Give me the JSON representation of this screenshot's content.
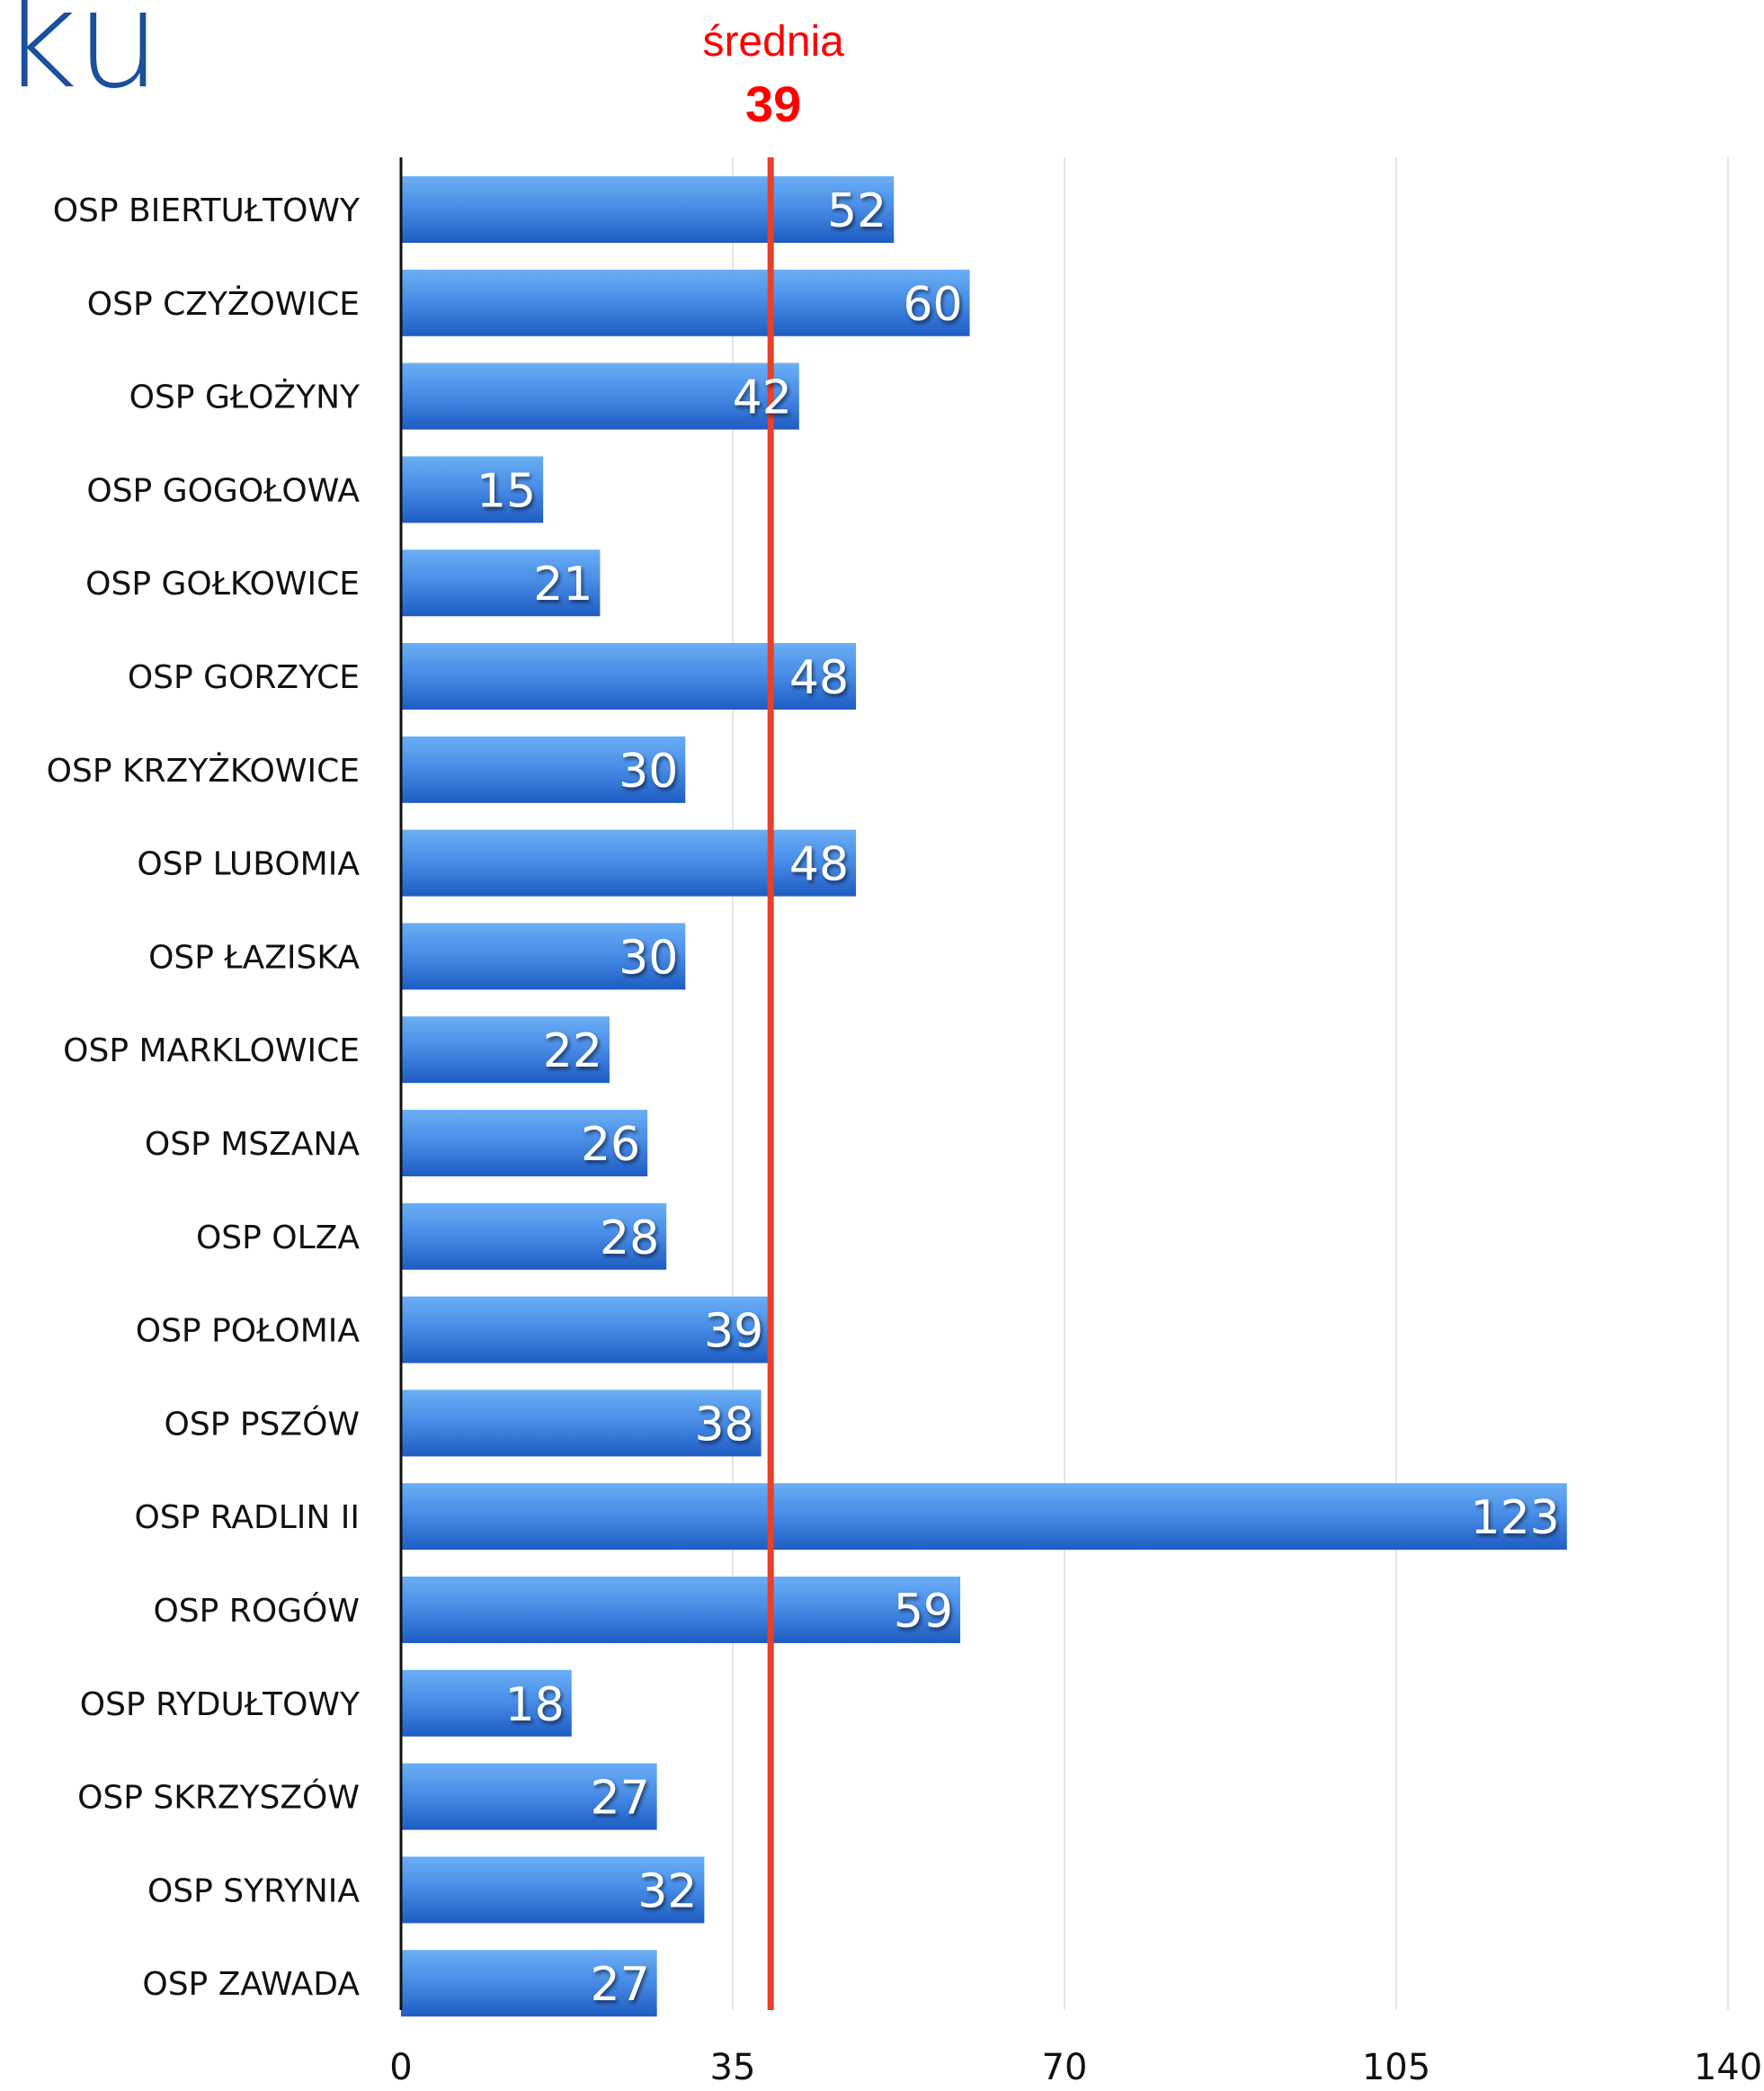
{
  "header": {
    "title_fragment": "ku"
  },
  "chart_data": {
    "type": "bar",
    "orientation": "horizontal",
    "categories": [
      "OSP BIERTUŁTOWY",
      "OSP CZYŻOWICE",
      "OSP GŁOŻYNY",
      "OSP GOGOŁOWA",
      "OSP GOŁKOWICE",
      "OSP GORZYCE",
      "OSP KRZYŻKOWICE",
      "OSP LUBOMIA",
      "OSP ŁAZISKA",
      "OSP MARKLOWICE",
      "OSP MSZANA",
      "OSP OLZA",
      "OSP POŁOMIA",
      "OSP PSZÓW",
      "OSP RADLIN II",
      "OSP ROGÓW",
      "OSP RYDUŁTOWY",
      "OSP SKRZYSZÓW",
      "OSP SYRYNIA",
      "OSP ZAWADA"
    ],
    "values": [
      52,
      60,
      42,
      15,
      21,
      48,
      30,
      48,
      30,
      22,
      26,
      28,
      39,
      38,
      123,
      59,
      18,
      27,
      32,
      27
    ],
    "xlim": [
      0,
      140
    ],
    "xticks": [
      "0",
      "35",
      "70",
      "105",
      "140"
    ],
    "grid": true,
    "average": {
      "label": "średnia",
      "value": 39,
      "display": "39"
    },
    "colors": {
      "bar_top": "#5aa2f2",
      "bar_bottom": "#1e5fc4",
      "average_line": "#e8402a",
      "average_text": "#ff0000",
      "grid": "#e6e6e6",
      "title": "#1c4f9c"
    }
  }
}
